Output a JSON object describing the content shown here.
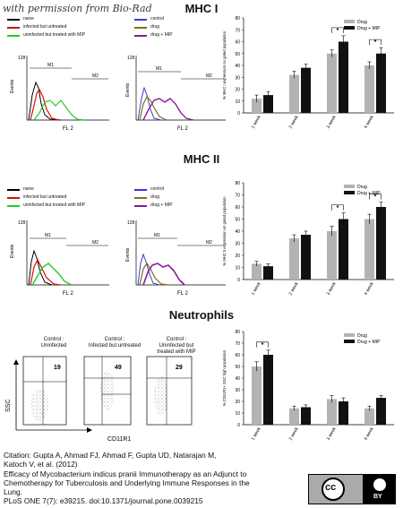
{
  "watermark": "with permission from Bio-Rad",
  "sections": {
    "mhc1": {
      "title": "MHC I",
      "legend_left": [
        {
          "label": "naive",
          "color": "#000000"
        },
        {
          "label": "infected but untreated",
          "color": "#d01010"
        },
        {
          "label": "uninfected but treated with MIP",
          "color": "#22cc22"
        }
      ],
      "legend_right": [
        {
          "label": "control",
          "color": "#3a3ad0"
        },
        {
          "label": "drug",
          "color": "#807018"
        },
        {
          "label": "drug + MIP",
          "color": "#8a1a9a"
        }
      ],
      "histogram_xlabel": "FL 2",
      "histogram_ylabel": "Events",
      "gates": [
        "M1",
        "M2"
      ],
      "y_max_label": "128"
    },
    "mhc2": {
      "title": "MHC II",
      "legend_left": [
        {
          "label": "naive",
          "color": "#000000"
        },
        {
          "label": "infected but untreated",
          "color": "#d01010"
        },
        {
          "label": "uninfected but treated with MIP",
          "color": "#22cc22"
        }
      ],
      "legend_right": [
        {
          "label": "control",
          "color": "#3a3ad0"
        },
        {
          "label": "drug",
          "color": "#807018"
        },
        {
          "label": "drug + MIP",
          "color": "#8a1a9a"
        }
      ],
      "histogram_xlabel": "FL 2",
      "histogram_ylabel": "Events",
      "gates": [
        "M1",
        "M2"
      ],
      "y_max_label": "128"
    },
    "neutro": {
      "title": "Neutrophils",
      "panels": [
        {
          "title_lines": [
            "Control :",
            "Uninfected"
          ],
          "value": "19"
        },
        {
          "title_lines": [
            "Control :",
            "Infected but untreated"
          ],
          "value": "49"
        },
        {
          "title_lines": [
            "Control :",
            "Uninfected but",
            "treated  with MIP"
          ],
          "value": "29"
        }
      ],
      "ylabel": "SSC",
      "xlabel": "CD11R1"
    }
  },
  "caption": {
    "lines": [
      "Citation: Gupta A, Ahmad FJ, Ahmad F, Gupta UD, Natarajan M,",
      "Katoch V, et al. (2012)",
      "Efficacy of Mycobacterium indicus pranii Immunotherapy as an Adjunct to",
      "Chemotherapy for Tuberculosis and Underlying Immune Responses in the",
      "Lung.",
      "PLoS ONE 7(7): e39215. doi:10.1371/journal.pone.0039215"
    ]
  },
  "license": {
    "cc": "cc",
    "by": "BY"
  },
  "chart_data": [
    {
      "type": "bar",
      "id": "mhc1-bars",
      "categories": [
        "1 week",
        "2 week",
        "3 week",
        "4 week"
      ],
      "series": [
        {
          "name": "Drug",
          "values": [
            12,
            32,
            50,
            40
          ],
          "errors": [
            3,
            3,
            3,
            3
          ],
          "color": "#b3b3b3"
        },
        {
          "name": "Drug + MIP",
          "values": [
            15,
            38,
            60,
            50
          ],
          "errors": [
            3,
            3,
            5,
            5
          ],
          "color": "#111111"
        }
      ],
      "ylabel": "% MHC I expression on gated population",
      "ylim": [
        0,
        80
      ],
      "yticks": [
        0,
        10,
        20,
        30,
        40,
        50,
        60,
        70,
        80
      ],
      "significance": [
        2,
        3
      ],
      "legend_position": "top-right"
    },
    {
      "type": "bar",
      "id": "mhc2-bars",
      "categories": [
        "1 week",
        "2 week",
        "3 week",
        "4 week"
      ],
      "series": [
        {
          "name": "Drug",
          "values": [
            13,
            34,
            40,
            50
          ],
          "errors": [
            2,
            3,
            4,
            4
          ],
          "color": "#b3b3b3"
        },
        {
          "name": "Drug + MIP",
          "values": [
            11,
            37,
            50,
            60
          ],
          "errors": [
            2,
            3,
            5,
            4
          ],
          "color": "#111111"
        }
      ],
      "ylabel": "% MHC II expression on gated population",
      "ylim": [
        0,
        80
      ],
      "yticks": [
        0,
        10,
        20,
        30,
        40,
        50,
        60,
        70,
        80
      ],
      "significance": [
        2,
        3
      ],
      "legend_position": "top-right"
    },
    {
      "type": "bar",
      "id": "neutro-bars",
      "categories": [
        "1 week",
        "2 week",
        "3 week",
        "4 week"
      ],
      "series": [
        {
          "name": "Drug",
          "values": [
            50,
            14,
            22,
            14
          ],
          "errors": [
            4,
            2,
            3,
            2
          ],
          "color": "#b3b3b3"
        },
        {
          "name": "Drug + MIP",
          "values": [
            60,
            15,
            20,
            23
          ],
          "errors": [
            4,
            2,
            3,
            2
          ],
          "color": "#111111"
        }
      ],
      "ylabel": "% CD11R1+ SSC high population",
      "ylim": [
        0,
        80
      ],
      "yticks": [
        0,
        10,
        20,
        30,
        40,
        50,
        60,
        70,
        80
      ],
      "significance": [
        0
      ],
      "legend_position": "top-right"
    }
  ]
}
